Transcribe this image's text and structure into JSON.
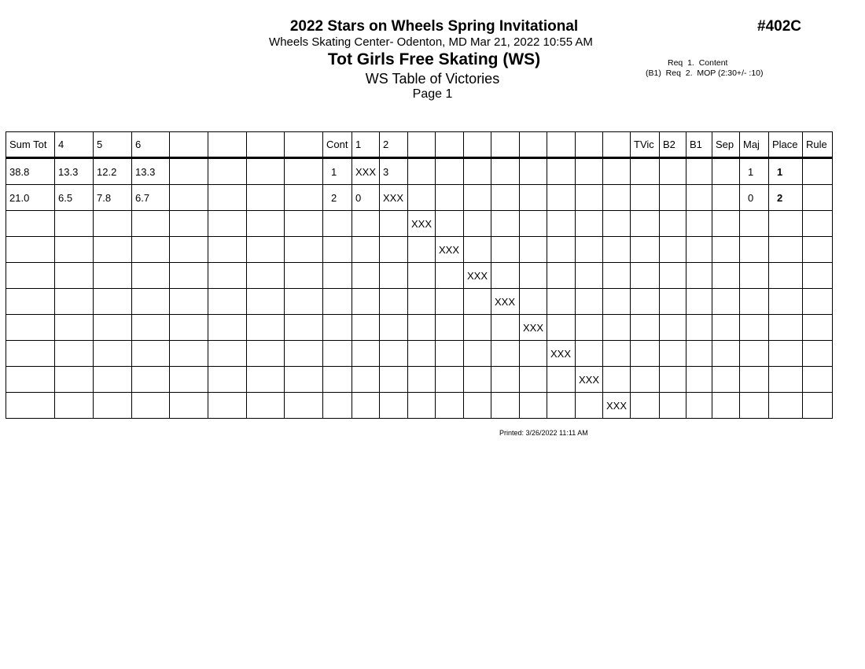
{
  "header": {
    "title": "2022 Stars on Wheels Spring Invitational",
    "venue": "Wheels Skating Center- Odenton, MD  Mar 21, 2022  10:55 AM",
    "event": "Tot Girls Free Skating (WS)",
    "subtitle": "WS Table of Victories",
    "page": "Page 1",
    "code": "#402C",
    "req1": "Req  1.  Content",
    "req2": "(B1)  Req  2.  MOP (2:30+/- :10)"
  },
  "table": {
    "columns": [
      "Sum Tot",
      "4",
      "5",
      "6",
      "",
      "",
      "",
      "",
      "Cont",
      "1",
      "2",
      "",
      "",
      "",
      "",
      "",
      "",
      "",
      "",
      "TVic",
      "B2",
      "B1",
      "Sep",
      "Maj",
      "Place",
      "Rule"
    ],
    "rows": [
      [
        "38.8",
        "13.3",
        "12.2",
        "13.3",
        "",
        "",
        "",
        "",
        "1",
        "XXX",
        "3",
        "",
        "",
        "",
        "",
        "",
        "",
        "",
        "",
        "",
        "",
        "",
        "",
        "1",
        "1",
        ""
      ],
      [
        "21.0",
        "6.5",
        "7.8",
        "6.7",
        "",
        "",
        "",
        "",
        "2",
        "0",
        "XXX",
        "",
        "",
        "",
        "",
        "",
        "",
        "",
        "",
        "",
        "",
        "",
        "",
        "0",
        "2",
        ""
      ],
      [
        "",
        "",
        "",
        "",
        "",
        "",
        "",
        "",
        "",
        "",
        "",
        "XXX",
        "",
        "",
        "",
        "",
        "",
        "",
        "",
        "",
        "",
        "",
        "",
        "",
        "",
        ""
      ],
      [
        "",
        "",
        "",
        "",
        "",
        "",
        "",
        "",
        "",
        "",
        "",
        "",
        "XXX",
        "",
        "",
        "",
        "",
        "",
        "",
        "",
        "",
        "",
        "",
        "",
        "",
        ""
      ],
      [
        "",
        "",
        "",
        "",
        "",
        "",
        "",
        "",
        "",
        "",
        "",
        "",
        "",
        "XXX",
        "",
        "",
        "",
        "",
        "",
        "",
        "",
        "",
        "",
        "",
        "",
        ""
      ],
      [
        "",
        "",
        "",
        "",
        "",
        "",
        "",
        "",
        "",
        "",
        "",
        "",
        "",
        "",
        "XXX",
        "",
        "",
        "",
        "",
        "",
        "",
        "",
        "",
        "",
        "",
        ""
      ],
      [
        "",
        "",
        "",
        "",
        "",
        "",
        "",
        "",
        "",
        "",
        "",
        "",
        "",
        "",
        "",
        "XXX",
        "",
        "",
        "",
        "",
        "",
        "",
        "",
        "",
        "",
        ""
      ],
      [
        "",
        "",
        "",
        "",
        "",
        "",
        "",
        "",
        "",
        "",
        "",
        "",
        "",
        "",
        "",
        "",
        "XXX",
        "",
        "",
        "",
        "",
        "",
        "",
        "",
        "",
        ""
      ],
      [
        "",
        "",
        "",
        "",
        "",
        "",
        "",
        "",
        "",
        "",
        "",
        "",
        "",
        "",
        "",
        "",
        "",
        "XXX",
        "",
        "",
        "",
        "",
        "",
        "",
        "",
        ""
      ],
      [
        "",
        "",
        "",
        "",
        "",
        "",
        "",
        "",
        "",
        "",
        "",
        "",
        "",
        "",
        "",
        "",
        "",
        "",
        "XXX",
        "",
        "",
        "",
        "",
        "",
        "",
        ""
      ]
    ]
  },
  "footer": {
    "printed": "Printed:  3/26/2022  11:11 AM"
  }
}
